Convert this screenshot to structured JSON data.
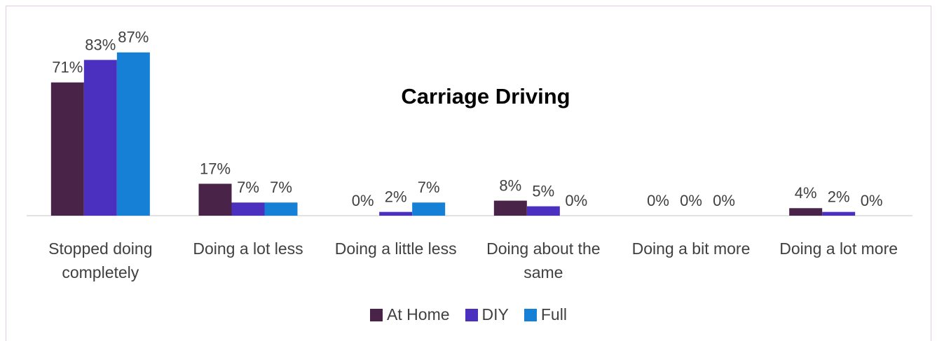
{
  "chart_data": {
    "type": "bar",
    "title": "Carriage Driving",
    "categories": [
      "Stopped doing completely",
      "Doing a lot less",
      "Doing a little less",
      "Doing about the same",
      "Doing a bit more",
      "Doing a lot more"
    ],
    "series": [
      {
        "name": "At Home",
        "color": "#4a2448",
        "values": [
          71,
          17,
          0,
          8,
          0,
          4
        ],
        "value_labels": [
          "71%",
          "17%",
          "0%",
          "8%",
          "0%",
          "4%"
        ]
      },
      {
        "name": "DIY",
        "color": "#4b30c0",
        "values": [
          83,
          7,
          2,
          5,
          0,
          2
        ],
        "value_labels": [
          "83%",
          "7%",
          "2%",
          "5%",
          "0%",
          "2%"
        ]
      },
      {
        "name": "Full",
        "color": "#1580d6",
        "values": [
          87,
          7,
          7,
          0,
          0,
          0
        ],
        "value_labels": [
          "87%",
          "7%",
          "7%",
          "0%",
          "0%",
          "0%"
        ]
      }
    ],
    "ylim": [
      0,
      100
    ]
  }
}
